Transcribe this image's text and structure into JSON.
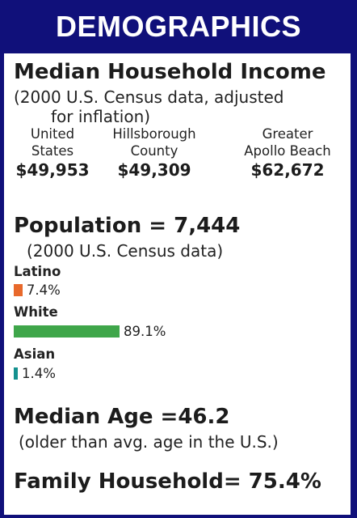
{
  "header": {
    "title": "DEMOGRAPHICS"
  },
  "income": {
    "title": "Median Household Income",
    "note_line1": "(2000 U.S. Census data, adjusted",
    "note_line2": "for inflation)",
    "columns": [
      {
        "line1": "United",
        "line2": "States",
        "value": "$49,953"
      },
      {
        "line1": "Hillsborough",
        "line2": "County",
        "value": "$49,309"
      },
      {
        "line1": "Greater",
        "line2": "Apollo Beach",
        "value": "$62,672"
      }
    ]
  },
  "population": {
    "title": "Population = 7,444",
    "note": "(2000 U.S. Census data)",
    "groups": [
      {
        "label": "Latino",
        "percent": 7.4,
        "percent_text": "7.4%",
        "color": "#e8692b"
      },
      {
        "label": "White",
        "percent": 89.1,
        "percent_text": "89.1%",
        "color": "#3fa64a"
      },
      {
        "label": "Asian",
        "percent": 1.4,
        "percent_text": "1.4%",
        "color": "#14918f"
      }
    ]
  },
  "age": {
    "title": "Median Age =46.2",
    "note": "(older than avg. age in the U.S.)"
  },
  "family": {
    "title": "Family Household= 75.4%"
  }
}
